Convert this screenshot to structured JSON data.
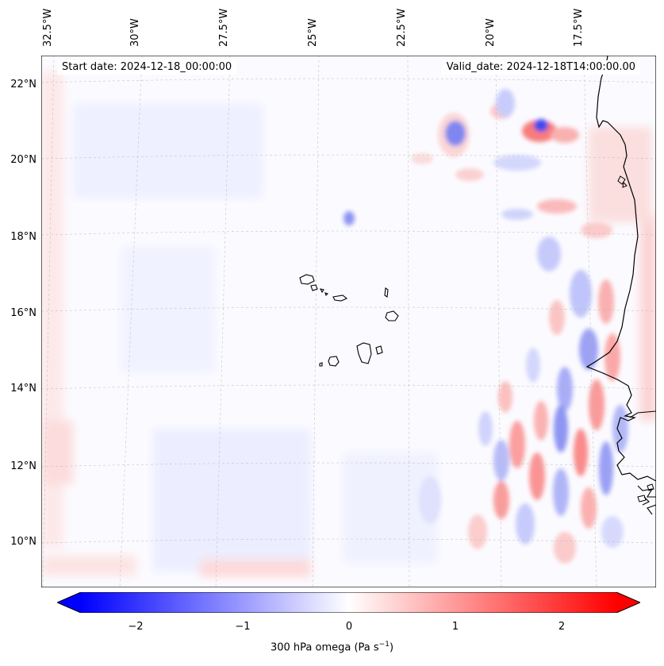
{
  "map": {
    "start_date": "Start date: 2024-12-18_00:00:00",
    "valid_date": "Valid_date: 2024-12-18T14:00:00.00",
    "lon_labels": [
      "32.5°W",
      "30°W",
      "27.5°W",
      "25°W",
      "22.5°W",
      "20°W",
      "17.5°W"
    ],
    "lat_labels": [
      "22°N",
      "20°N",
      "18°N",
      "16°N",
      "14°N",
      "12°N",
      "10°N"
    ],
    "colors": {
      "negative": "#0000ff",
      "zero": "#ffffff",
      "positive": "#ff0000",
      "coastline": "#000000"
    }
  },
  "colorbar": {
    "ticks": [
      "−2",
      "−1",
      "0",
      "1",
      "2"
    ],
    "label": "300 hPa omega (Pa s",
    "label_sup": "−1",
    "label_end": ")"
  }
}
